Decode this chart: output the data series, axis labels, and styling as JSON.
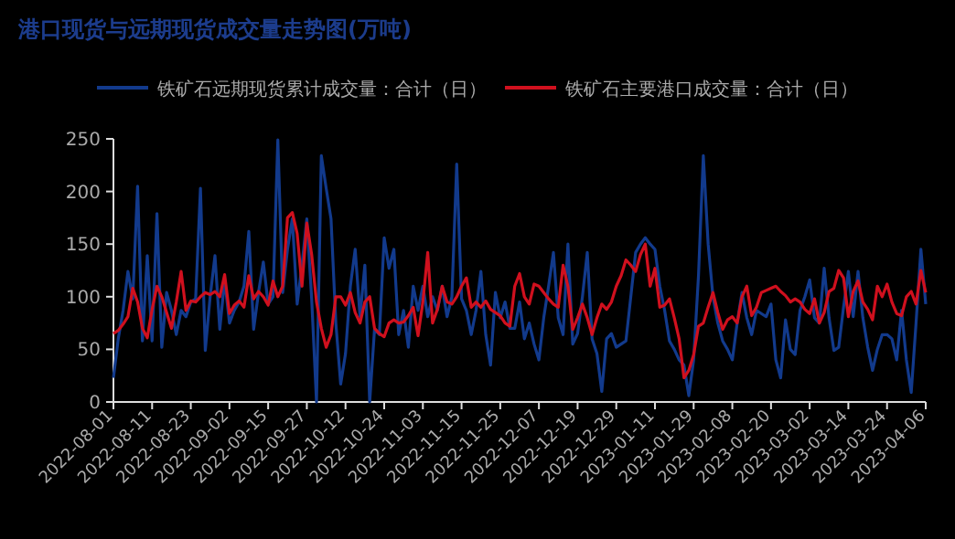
{
  "chart_data": {
    "type": "line",
    "title": "港口现货与远期现货成交量走势图(万吨)",
    "categories": [
      "2022-08-01",
      null,
      null,
      null,
      null,
      null,
      null,
      null,
      "2022-08-11",
      null,
      null,
      null,
      null,
      null,
      null,
      null,
      "2022-08-23",
      null,
      null,
      null,
      null,
      null,
      null,
      null,
      "2022-09-02",
      null,
      null,
      null,
      null,
      null,
      null,
      null,
      "2022-09-15",
      null,
      null,
      null,
      null,
      null,
      null,
      null,
      "2022-09-27",
      null,
      null,
      null,
      null,
      null,
      null,
      null,
      "2022-10-12",
      null,
      null,
      null,
      null,
      null,
      null,
      null,
      "2022-10-24",
      null,
      null,
      null,
      null,
      null,
      null,
      null,
      "2022-11-03",
      null,
      null,
      null,
      null,
      null,
      null,
      null,
      "2022-11-15",
      null,
      null,
      null,
      null,
      null,
      null,
      null,
      "2022-11-25",
      null,
      null,
      null,
      null,
      null,
      null,
      null,
      "2022-12-07",
      null,
      null,
      null,
      null,
      null,
      null,
      null,
      "2022-12-19",
      null,
      null,
      null,
      null,
      null,
      null,
      null,
      "2022-12-29",
      null,
      null,
      null,
      null,
      null,
      null,
      null,
      "2023-01-11",
      null,
      null,
      null,
      null,
      null,
      null,
      null,
      "2023-01-29",
      null,
      null,
      null,
      null,
      null,
      null,
      null,
      "2023-02-08",
      null,
      null,
      null,
      null,
      null,
      null,
      null,
      "2023-02-20",
      null,
      null,
      null,
      null,
      null,
      null,
      null,
      "2023-03-02",
      null,
      null,
      null,
      null,
      null,
      null,
      null,
      "2023-03-14",
      null,
      null,
      null,
      null,
      null,
      null,
      null,
      "2023-03-24",
      null,
      null,
      null,
      null,
      null,
      null,
      null,
      "2023-04-06"
    ],
    "series": [
      {
        "name": "铁矿石远期现货累计成交量：合计（日）",
        "color": "#123a8c",
        "values": [
          23,
          60,
          87,
          124,
          98,
          205,
          58,
          139,
          58,
          179,
          52,
          104,
          87,
          64,
          87,
          81,
          95,
          98,
          203,
          49,
          100,
          139,
          69,
          116,
          75,
          87,
          95,
          110,
          162,
          69,
          104,
          133,
          93,
          100,
          249,
          104,
          145,
          174,
          93,
          130,
          174,
          98,
          0,
          234,
          203,
          174,
          75,
          17,
          46,
          110,
          145,
          81,
          130,
          0,
          69,
          64,
          156,
          127,
          145,
          64,
          87,
          52,
          110,
          87,
          110,
          81,
          100,
          87,
          110,
          81,
          100,
          226,
          98,
          87,
          64,
          87,
          124,
          64,
          35,
          104,
          80,
          95,
          70,
          70,
          95,
          60,
          75,
          55,
          40,
          80,
          110,
          142,
          80,
          64,
          150,
          55,
          65,
          100,
          142,
          60,
          46,
          10,
          60,
          65,
          52,
          55,
          58,
          100,
          142,
          150,
          156,
          150,
          145,
          110,
          87,
          58,
          50,
          40,
          35,
          6,
          40,
          120,
          234,
          150,
          100,
          75,
          58,
          50,
          40,
          75,
          104,
          80,
          64,
          87,
          84,
          81,
          93,
          40,
          23,
          78,
          50,
          45,
          87,
          100,
          116,
          80,
          75,
          127,
          80,
          49,
          52,
          90,
          124,
          81,
          124,
          80,
          52,
          30,
          50,
          64,
          64,
          60,
          40,
          87,
          40,
          9,
          75,
          145,
          93
        ]
      },
      {
        "name": "铁矿石主要港口成交量：合计（日）",
        "color": "#d0101e",
        "values": [
          65,
          68,
          74,
          81,
          108,
          95,
          70,
          61,
          88,
          110,
          100,
          85,
          70,
          95,
          124,
          87,
          96,
          95,
          100,
          104,
          102,
          105,
          100,
          121,
          84,
          92,
          96,
          90,
          120,
          98,
          105,
          100,
          92,
          115,
          100,
          110,
          175,
          180,
          160,
          110,
          170,
          140,
          95,
          70,
          52,
          64,
          100,
          100,
          92,
          104,
          85,
          75,
          95,
          100,
          70,
          65,
          62,
          75,
          78,
          75,
          76,
          82,
          90,
          63,
          95,
          142,
          75,
          88,
          110,
          95,
          93,
          100,
          110,
          118,
          90,
          95,
          90,
          96,
          88,
          85,
          82,
          75,
          72,
          110,
          122,
          100,
          93,
          112,
          110,
          104,
          98,
          93,
          90,
          130,
          110,
          69,
          80,
          93,
          80,
          64,
          80,
          93,
          88,
          95,
          110,
          120,
          135,
          130,
          124,
          140,
          150,
          110,
          127,
          90,
          92,
          98,
          80,
          60,
          23,
          30,
          45,
          72,
          75,
          90,
          104,
          85,
          69,
          78,
          81,
          75,
          100,
          110,
          82,
          90,
          104,
          106,
          108,
          110,
          105,
          101,
          95,
          98,
          95,
          88,
          84,
          98,
          75,
          85,
          105,
          108,
          125,
          118,
          81,
          105,
          115,
          95,
          88,
          78,
          110,
          100,
          112,
          95,
          84,
          82,
          100,
          105,
          93,
          125,
          104
        ]
      }
    ],
    "ylim": [
      0,
      250
    ],
    "yticks": [
      0,
      50,
      100,
      150,
      200,
      250
    ],
    "grid": false,
    "legend": "top",
    "marker": "none",
    "line_style": "solid"
  }
}
